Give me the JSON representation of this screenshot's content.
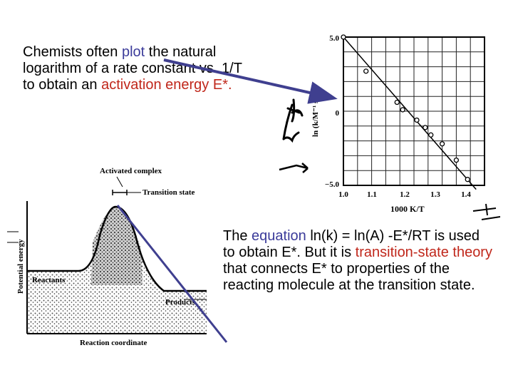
{
  "intro": {
    "part1": "Chemists often ",
    "plot": "plot",
    "part2": " the natural logarithm of a rate constant vs. 1/T to obtain an ",
    "activation": "activation energy E*."
  },
  "equation_text": {
    "part1": "The ",
    "equation": "equation",
    "part2": " ln(k) = ln(A) -E*/RT is used to obtain E*. But it is ",
    "tst": "transition-state theory",
    "part3": " that connects E* to properties of the reacting molecule at the transition state."
  },
  "plot_graph": {
    "xlabel": "1000 K/T",
    "ylabel": "ln (k/M⁻¹ s⁻¹)",
    "x_ticks": [
      "1.0",
      "1.1",
      "1.2",
      "1.3",
      "1.4"
    ],
    "y_ticks": [
      "5.0",
      "0",
      "−5.0"
    ]
  },
  "chart_data": {
    "type": "scatter",
    "xlabel": "1000 K/T",
    "ylabel": "ln (k/M⁻¹ s⁻¹)",
    "xlim": [
      1.0,
      1.5
    ],
    "ylim": [
      -5.0,
      5.0
    ],
    "grid": true,
    "x": [
      1.0,
      1.08,
      1.19,
      1.21,
      1.26,
      1.29,
      1.31,
      1.35,
      1.4,
      1.44
    ],
    "y": [
      5.0,
      2.7,
      0.6,
      0.1,
      -0.6,
      -1.1,
      -1.6,
      -2.2,
      -3.3,
      -4.6
    ]
  },
  "energy_diagram": {
    "activated_complex": "Activated complex",
    "transition_state": "Transition state",
    "reactants": "Reactants",
    "products": "Products",
    "xlabel": "Reaction coordinate",
    "ylabel": "Potential energy"
  },
  "colors": {
    "arrow": "#3f3f8f",
    "highlight_blue": "#3b3b9a",
    "highlight_red": "#c0271b"
  }
}
